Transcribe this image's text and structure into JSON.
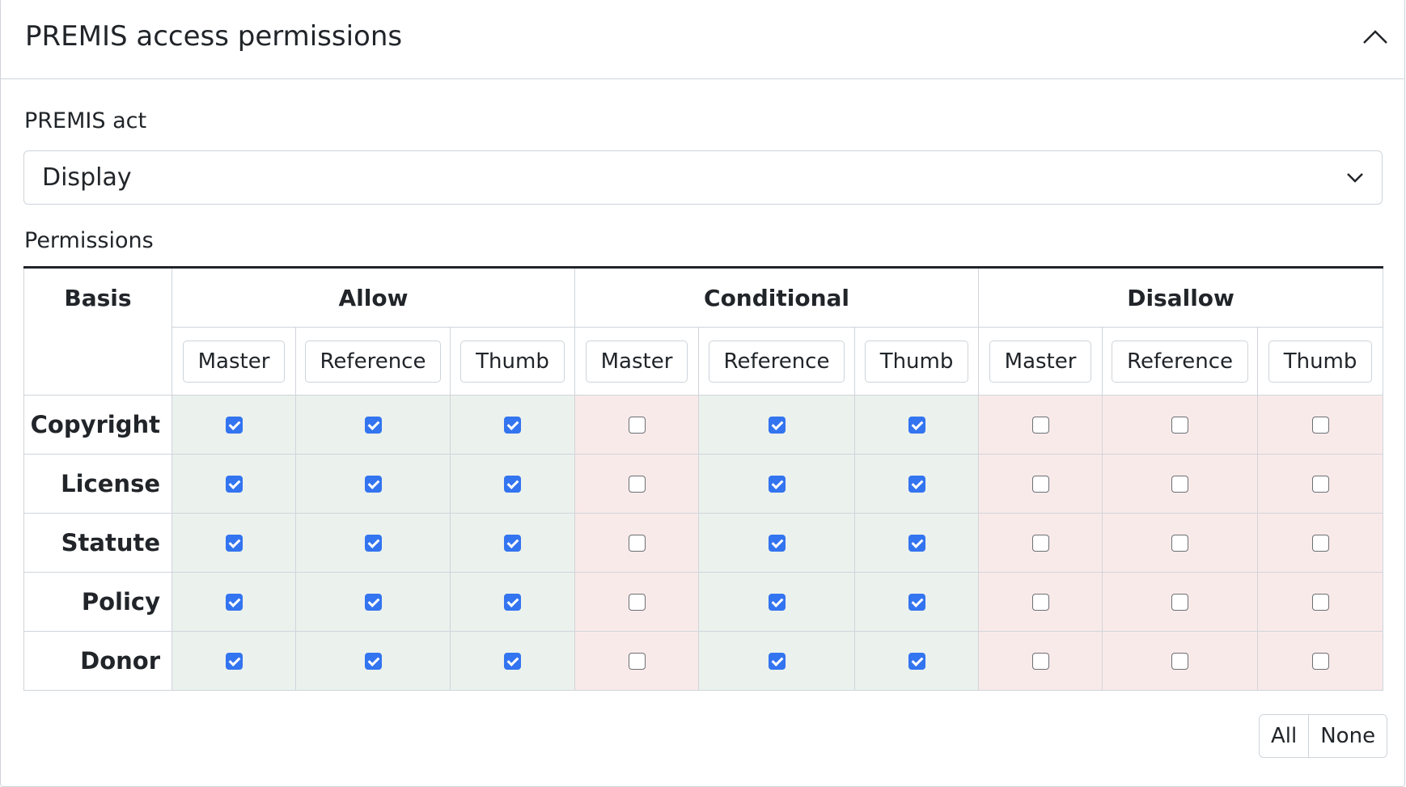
{
  "panel": {
    "title": "PREMIS access permissions",
    "collapse_icon": "chevron-up-icon"
  },
  "act": {
    "label": "PREMIS act",
    "selected": "Display"
  },
  "permissions": {
    "label": "Permissions",
    "basis_header": "Basis",
    "groups": [
      "Allow",
      "Conditional",
      "Disallow"
    ],
    "subcolumns": [
      "Master",
      "Reference",
      "Thumb"
    ],
    "rows": [
      {
        "basis": "Copyright",
        "values": [
          true,
          true,
          true,
          false,
          true,
          true,
          false,
          false,
          false
        ]
      },
      {
        "basis": "License",
        "values": [
          true,
          true,
          true,
          false,
          true,
          true,
          false,
          false,
          false
        ]
      },
      {
        "basis": "Statute",
        "values": [
          true,
          true,
          true,
          false,
          true,
          true,
          false,
          false,
          false
        ]
      },
      {
        "basis": "Policy",
        "values": [
          true,
          true,
          true,
          false,
          true,
          true,
          false,
          false,
          false
        ]
      },
      {
        "basis": "Donor",
        "values": [
          true,
          true,
          true,
          false,
          true,
          true,
          false,
          false,
          false
        ]
      }
    ],
    "colors": {
      "allow_bg": "#ebf1ed",
      "disallow_bg": "#f9eaea",
      "checked": "#3374f0"
    }
  },
  "actions": {
    "all": "All",
    "none": "None"
  }
}
